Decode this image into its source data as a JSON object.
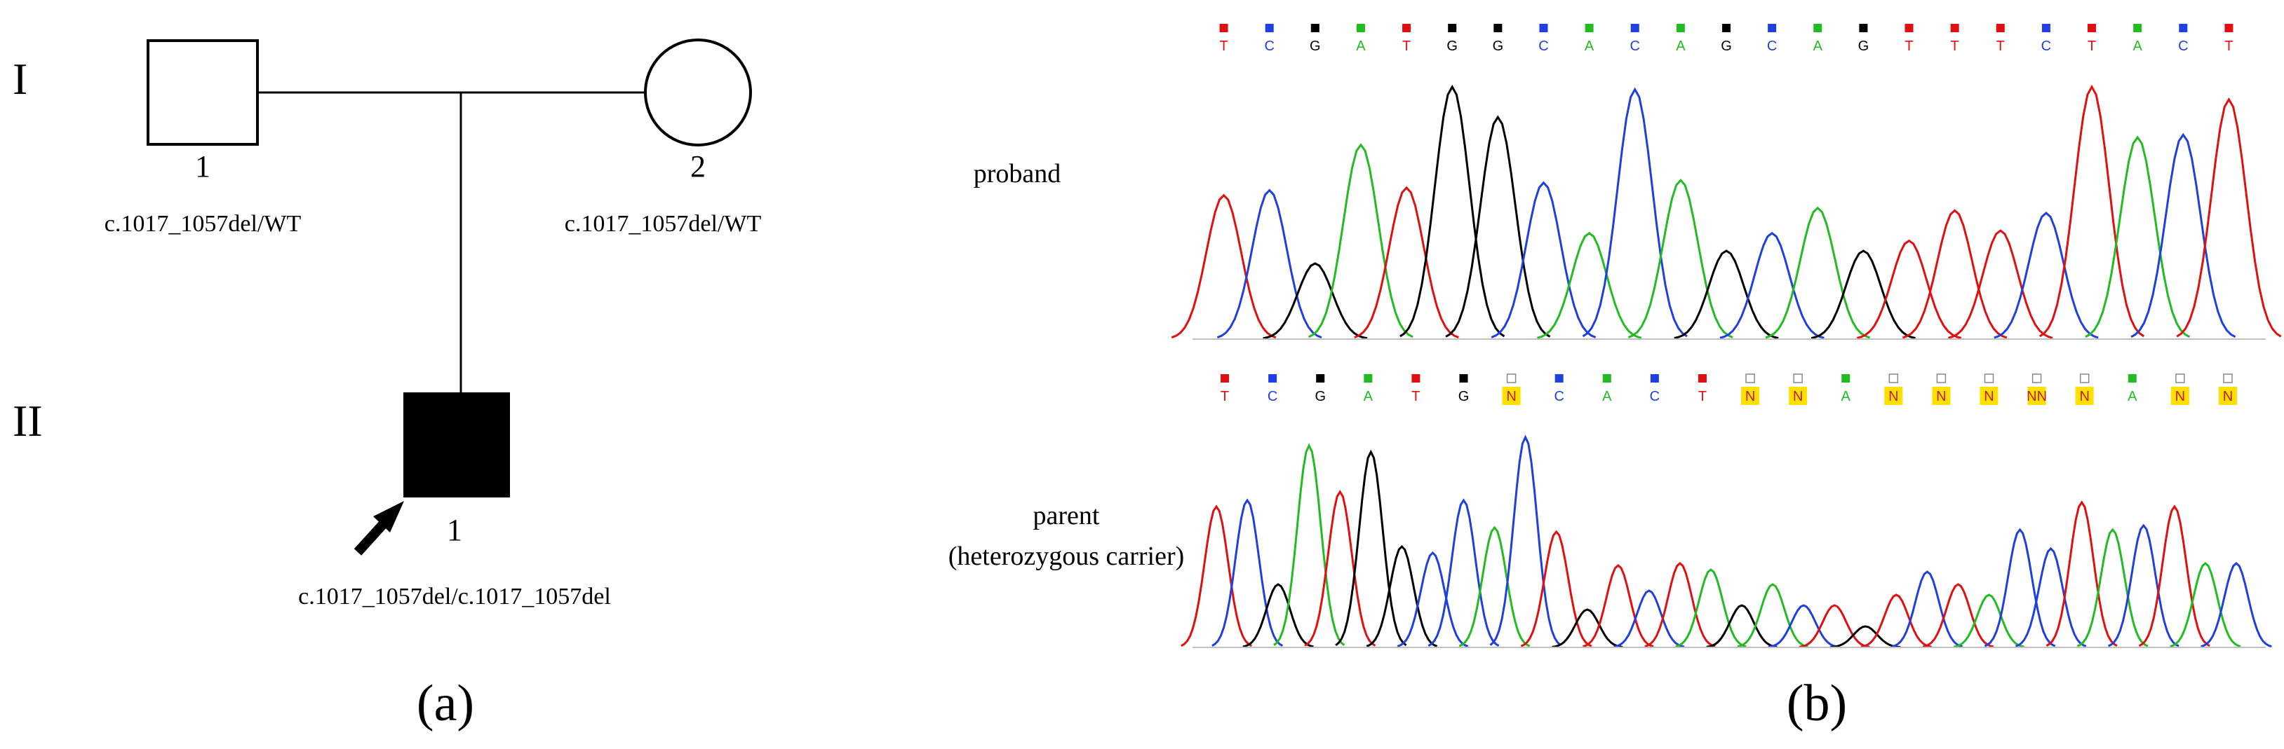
{
  "panel_a": {
    "generation_labels": [
      "I",
      "II"
    ],
    "individuals": [
      {
        "id": "I-1",
        "sex": "male",
        "affected": false,
        "number": "1",
        "genotype": "c.1017_1057del/WT"
      },
      {
        "id": "I-2",
        "sex": "female",
        "affected": false,
        "number": "2",
        "genotype": "c.1017_1057del/WT"
      },
      {
        "id": "II-1",
        "sex": "male",
        "affected": true,
        "proband": true,
        "number": "1",
        "genotype": "c.1017_1057del/c.1017_1057del"
      }
    ],
    "panel_label": "(a)"
  },
  "panel_b": {
    "panel_label": "(b)",
    "colors": {
      "A": "#22bb22",
      "C": "#1f3fe0",
      "G": "#000000",
      "T": "#e01010",
      "N_highlight": "#ffe000"
    },
    "tracks": [
      {
        "name": "proband",
        "label_lines": [
          "proband"
        ],
        "bases": [
          "T",
          "C",
          "G",
          "A",
          "T",
          "G",
          "G",
          "C",
          "A",
          "C",
          "A",
          "G",
          "C",
          "A",
          "G",
          "T",
          "T",
          "T",
          "C",
          "T",
          "A",
          "C",
          "T"
        ],
        "peaks": [
          {
            "base": "T",
            "h": 0.57
          },
          {
            "base": "C",
            "h": 0.59
          },
          {
            "base": "G",
            "h": 0.3
          },
          {
            "base": "A",
            "h": 0.77
          },
          {
            "base": "T",
            "h": 0.6
          },
          {
            "base": "G",
            "h": 1.0
          },
          {
            "base": "G",
            "h": 0.88
          },
          {
            "base": "C",
            "h": 0.62
          },
          {
            "base": "A",
            "h": 0.42
          },
          {
            "base": "C",
            "h": 0.99
          },
          {
            "base": "A",
            "h": 0.63
          },
          {
            "base": "G",
            "h": 0.35
          },
          {
            "base": "C",
            "h": 0.42
          },
          {
            "base": "A",
            "h": 0.52
          },
          {
            "base": "G",
            "h": 0.35
          },
          {
            "base": "T",
            "h": 0.39
          },
          {
            "base": "T",
            "h": 0.51
          },
          {
            "base": "T",
            "h": 0.43
          },
          {
            "base": "C",
            "h": 0.5
          },
          {
            "base": "T",
            "h": 1.0
          },
          {
            "base": "A",
            "h": 0.8
          },
          {
            "base": "C",
            "h": 0.81
          },
          {
            "base": "T",
            "h": 0.95
          }
        ]
      },
      {
        "name": "parent",
        "label_lines": [
          "parent",
          "(heterozygous carrier)"
        ],
        "bases": [
          "T",
          "C",
          "G",
          "A",
          "T",
          "G",
          "N",
          "C",
          "A",
          "C",
          "T",
          "N",
          "N",
          "A",
          "N",
          "N",
          "N",
          "NN",
          "N",
          "A",
          "N",
          "N"
        ],
        "peaks": [
          {
            "base": "T",
            "h": 0.67
          },
          {
            "base": "C",
            "h": 0.7
          },
          {
            "base": "G",
            "h": 0.3
          },
          {
            "base": "A",
            "h": 0.96
          },
          {
            "base": "T",
            "h": 0.74
          },
          {
            "base": "G",
            "h": 0.93
          },
          {
            "base": "G",
            "h": 0.48
          },
          {
            "base": "C",
            "h": 0.45
          },
          {
            "base": "C",
            "h": 0.7
          },
          {
            "base": "A",
            "h": 0.57
          },
          {
            "base": "C",
            "h": 1.0
          },
          {
            "base": "T",
            "h": 0.55
          },
          {
            "base": "G",
            "h": 0.18
          },
          {
            "base": "T",
            "h": 0.39
          },
          {
            "base": "C",
            "h": 0.27
          },
          {
            "base": "T",
            "h": 0.4
          },
          {
            "base": "A",
            "h": 0.37
          },
          {
            "base": "G",
            "h": 0.2
          },
          {
            "base": "A",
            "h": 0.3
          },
          {
            "base": "C",
            "h": 0.2
          },
          {
            "base": "T",
            "h": 0.2
          },
          {
            "base": "G",
            "h": 0.1
          },
          {
            "base": "T",
            "h": 0.25
          },
          {
            "base": "C",
            "h": 0.36
          },
          {
            "base": "T",
            "h": 0.3
          },
          {
            "base": "A",
            "h": 0.25
          },
          {
            "base": "C",
            "h": 0.56
          },
          {
            "base": "C",
            "h": 0.47
          },
          {
            "base": "T",
            "h": 0.69
          },
          {
            "base": "A",
            "h": 0.56
          },
          {
            "base": "C",
            "h": 0.58
          },
          {
            "base": "T",
            "h": 0.67
          },
          {
            "base": "A",
            "h": 0.4
          },
          {
            "base": "C",
            "h": 0.4
          }
        ]
      }
    ]
  }
}
